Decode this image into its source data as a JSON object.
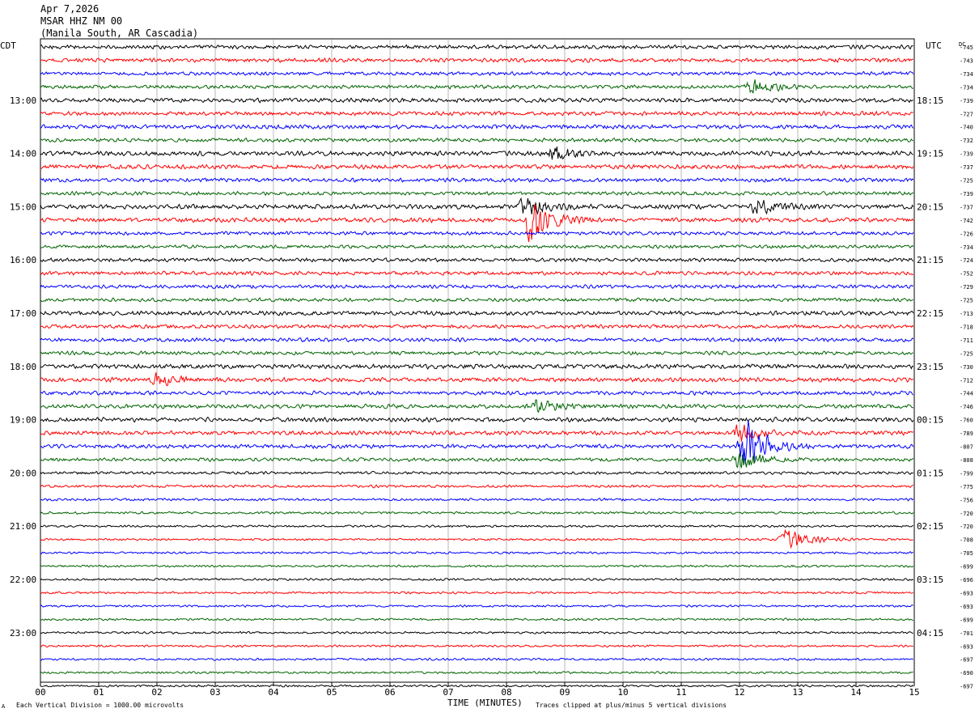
{
  "header": {
    "date": "Apr 7,2026",
    "station": "MSAR HHZ NM 00",
    "location": "(Manila South, AR Cascadia)"
  },
  "axis_labels": {
    "left": "CDT",
    "right": "UTC",
    "dc": "DC"
  },
  "footer": {
    "scale_note": "Each Vertical Division = 1000.00 microvolts",
    "xlabel": "TIME (MINUTES)",
    "clip_note": "Traces clipped at plus/minus 5 vertical divisions",
    "corner_mark": "A"
  },
  "chart_data": {
    "type": "line",
    "trace_colors": [
      "#000000",
      "#ff0000",
      "#0000ff",
      "#006400"
    ],
    "x_ticks": [
      "00",
      "01",
      "02",
      "03",
      "04",
      "05",
      "06",
      "07",
      "08",
      "09",
      "10",
      "11",
      "12",
      "13",
      "14",
      "15"
    ],
    "xlim": [
      0,
      15
    ],
    "left_hour_labels": [
      "13:00",
      "14:00",
      "15:00",
      "16:00",
      "17:00",
      "18:00",
      "19:00",
      "20:00",
      "21:00",
      "22:00",
      "23:00"
    ],
    "right_hour_labels": [
      "18:15",
      "19:15",
      "20:15",
      "21:15",
      "22:15",
      "23:15",
      "00:15",
      "01:15",
      "02:15",
      "03:15",
      "04:15"
    ],
    "dc_offsets": [
      -745,
      -743,
      -734,
      -734,
      -739,
      -727,
      -740,
      -732,
      -739,
      -737,
      -725,
      -739,
      -737,
      -742,
      -726,
      -734,
      -724,
      -752,
      -729,
      -725,
      -713,
      -718,
      -711,
      -725,
      -730,
      -712,
      -744,
      -746,
      -760,
      -789,
      -807,
      -808,
      -799,
      -775,
      -756,
      -720,
      -720,
      -708,
      -705,
      -699,
      -696,
      -693,
      -693,
      -699,
      -701,
      -693,
      -697,
      -690,
      -697
    ],
    "noise_levels": [
      2.2,
      2.2,
      2.0,
      2.0,
      2.4,
      2.3,
      2.3,
      2.1,
      2.6,
      2.5,
      2.1,
      2.0,
      2.6,
      2.5,
      2.0,
      1.9,
      2.1,
      2.1,
      2.0,
      2.0,
      2.4,
      2.2,
      2.1,
      2.0,
      2.5,
      2.4,
      2.2,
      2.3,
      2.4,
      2.3,
      2.2,
      2.0,
      1.6,
      1.5,
      1.4,
      1.3,
      1.2,
      1.2,
      1.2,
      1.2,
      1.2,
      1.2,
      1.2,
      1.2,
      1.2,
      1.2,
      1.2,
      1.2,
      1.2
    ],
    "events": [
      {
        "trace": 13,
        "minute": 8.4,
        "amplitude": 4.5
      },
      {
        "trace": 12,
        "minute": 8.3,
        "amplitude": 1.8
      },
      {
        "trace": 12,
        "minute": 12.3,
        "amplitude": 1.4
      },
      {
        "trace": 8,
        "minute": 8.8,
        "amplitude": 1.6
      },
      {
        "trace": 3,
        "minute": 12.2,
        "amplitude": 1.6
      },
      {
        "trace": 30,
        "minute": 12.1,
        "amplitude": 5.5
      },
      {
        "trace": 29,
        "minute": 12.0,
        "amplitude": 2.0
      },
      {
        "trace": 31,
        "minute": 12.0,
        "amplitude": 2.2
      },
      {
        "trace": 27,
        "minute": 8.5,
        "amplitude": 1.5
      },
      {
        "trace": 37,
        "minute": 12.8,
        "amplitude": 2.5
      },
      {
        "trace": 25,
        "minute": 2.0,
        "amplitude": 1.2
      }
    ]
  }
}
